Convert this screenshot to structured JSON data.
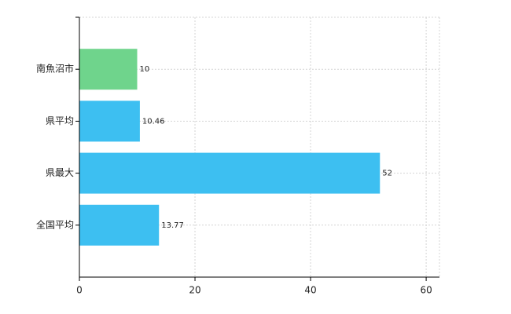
{
  "chart_data": {
    "type": "bar",
    "orientation": "horizontal",
    "categories": [
      "南魚沼市",
      "県平均",
      "県最大",
      "全国平均"
    ],
    "values": [
      10,
      10.46,
      52,
      13.77
    ],
    "colors": [
      "#6fd48c",
      "#3dbff1",
      "#3dbff1",
      "#3dbff1"
    ],
    "xlim": [
      0,
      62.3
    ],
    "xticks": [
      0,
      20,
      40,
      60
    ],
    "grid": true
  }
}
